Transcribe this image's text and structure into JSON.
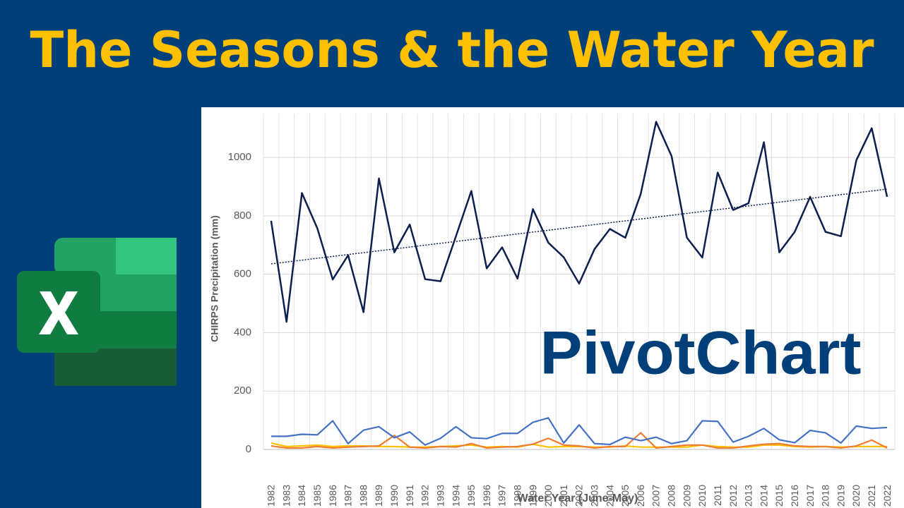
{
  "header": {
    "title": "The Seasons & the Water Year"
  },
  "overlay_label": "PivotChart",
  "chart_data": {
    "type": "line",
    "y_label": "CHIRPS Precipitation (mm)",
    "x_label": "Water Year (June-May)",
    "categories": [
      "1982",
      "1983",
      "1984",
      "1985",
      "1986",
      "1987",
      "1988",
      "1989",
      "1990",
      "1991",
      "1992",
      "1993",
      "1994",
      "1995",
      "1996",
      "1997",
      "1998",
      "1999",
      "2000",
      "2001",
      "2002",
      "2003",
      "2004",
      "2005",
      "2006",
      "2007",
      "2008",
      "2009",
      "2010",
      "2011",
      "2012",
      "2013",
      "2014",
      "2015",
      "2016",
      "2017",
      "2018",
      "2019",
      "2020",
      "2021",
      "2022"
    ],
    "series": [
      {
        "color": "#0d1f4f",
        "trendline": true,
        "values": [
          783,
          437,
          878,
          757,
          582,
          665,
          470,
          928,
          675,
          770,
          583,
          576,
          730,
          885,
          620,
          692,
          585,
          823,
          708,
          658,
          568,
          686,
          755,
          725,
          875,
          1122,
          1005,
          725,
          657,
          948,
          820,
          843,
          1052,
          675,
          745,
          865,
          745,
          730,
          990,
          1100,
          865
        ]
      },
      {
        "color": "#4472c4",
        "values": [
          45,
          45,
          52,
          50,
          98,
          20,
          66,
          78,
          40,
          60,
          15,
          38,
          78,
          40,
          37,
          55,
          55,
          93,
          108,
          22,
          84,
          20,
          17,
          42,
          30,
          42,
          20,
          30,
          98,
          96,
          25,
          45,
          72,
          33,
          23,
          65,
          57,
          22,
          80,
          72,
          75
        ]
      },
      {
        "color": "#ed7d31",
        "values": [
          12,
          5,
          5,
          10,
          5,
          8,
          10,
          12,
          48,
          8,
          5,
          10,
          8,
          20,
          5,
          8,
          10,
          18,
          38,
          15,
          12,
          5,
          10,
          10,
          57,
          5,
          10,
          15,
          15,
          5,
          5,
          12,
          18,
          20,
          12,
          10,
          10,
          5,
          12,
          32,
          5
        ]
      },
      {
        "color": "#ffc000",
        "values": [
          22,
          10,
          12,
          15,
          10,
          12,
          12,
          10,
          10,
          8,
          8,
          10,
          12,
          15,
          8,
          10,
          8,
          18,
          8,
          10,
          10,
          8,
          8,
          12,
          8,
          8,
          8,
          8,
          15,
          10,
          8,
          8,
          15,
          15,
          10,
          8,
          10,
          8,
          10,
          10,
          10
        ]
      }
    ],
    "ylim": [
      0,
      1150
    ],
    "yticks": [
      0,
      200,
      400,
      600,
      800,
      1000
    ],
    "grid": true
  }
}
